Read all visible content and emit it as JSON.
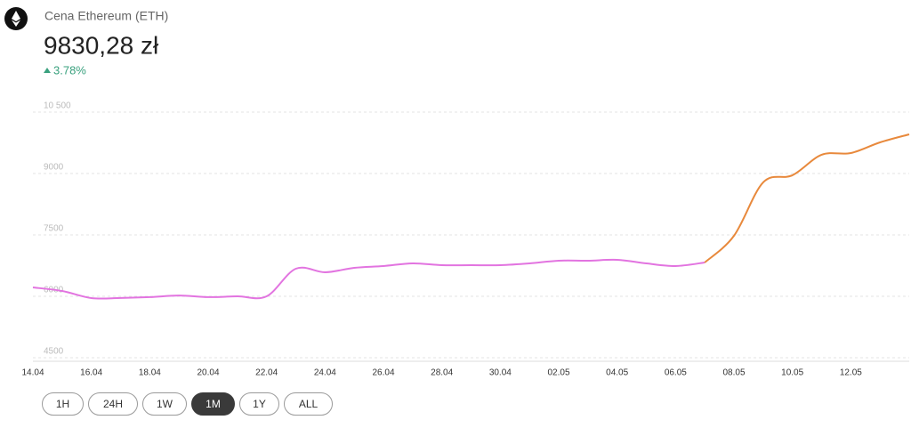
{
  "header": {
    "title": "Cena Ethereum (ETH)",
    "price": "9830,28 zł",
    "change": "3.78%"
  },
  "buttons": [
    "1H",
    "24H",
    "1W",
    "1M",
    "1Y",
    "ALL"
  ],
  "active_button": "1M",
  "chart_data": {
    "type": "line",
    "categories": [
      "14.04",
      null,
      "16.04",
      null,
      "18.04",
      null,
      "20.04",
      null,
      "22.04",
      null,
      "24.04",
      null,
      "26.04",
      null,
      "28.04",
      null,
      "30.04",
      null,
      "02.05",
      null,
      "04.05",
      null,
      "06.05",
      null,
      "08.05",
      null,
      "10.05",
      null,
      "12.05",
      null,
      null
    ],
    "series": [
      {
        "name": "ETH",
        "color": "#e274e0",
        "values": [
          6217,
          6130,
          5957,
          5960,
          5980,
          6020,
          5980,
          6000,
          6000,
          6674,
          6587,
          6696,
          6740,
          6804,
          6761,
          6761,
          6761,
          6804,
          6870,
          6870,
          6891,
          6804,
          6740,
          6826,
          null,
          null,
          null,
          null,
          null,
          null,
          null
        ]
      },
      {
        "name": "ETH",
        "color": "#e8893c",
        "values": [
          null,
          null,
          null,
          null,
          null,
          null,
          null,
          null,
          null,
          null,
          null,
          null,
          null,
          null,
          null,
          null,
          null,
          null,
          null,
          null,
          null,
          null,
          null,
          6826,
          7478,
          8783,
          8957,
          9457,
          9500,
          9761,
          9957
        ]
      }
    ],
    "ylim": [
      4500,
      10500
    ],
    "yticks": [
      4500,
      6000,
      7500,
      9000,
      {
        "value": 10500,
        "label": "10 500"
      }
    ],
    "grid": true
  }
}
